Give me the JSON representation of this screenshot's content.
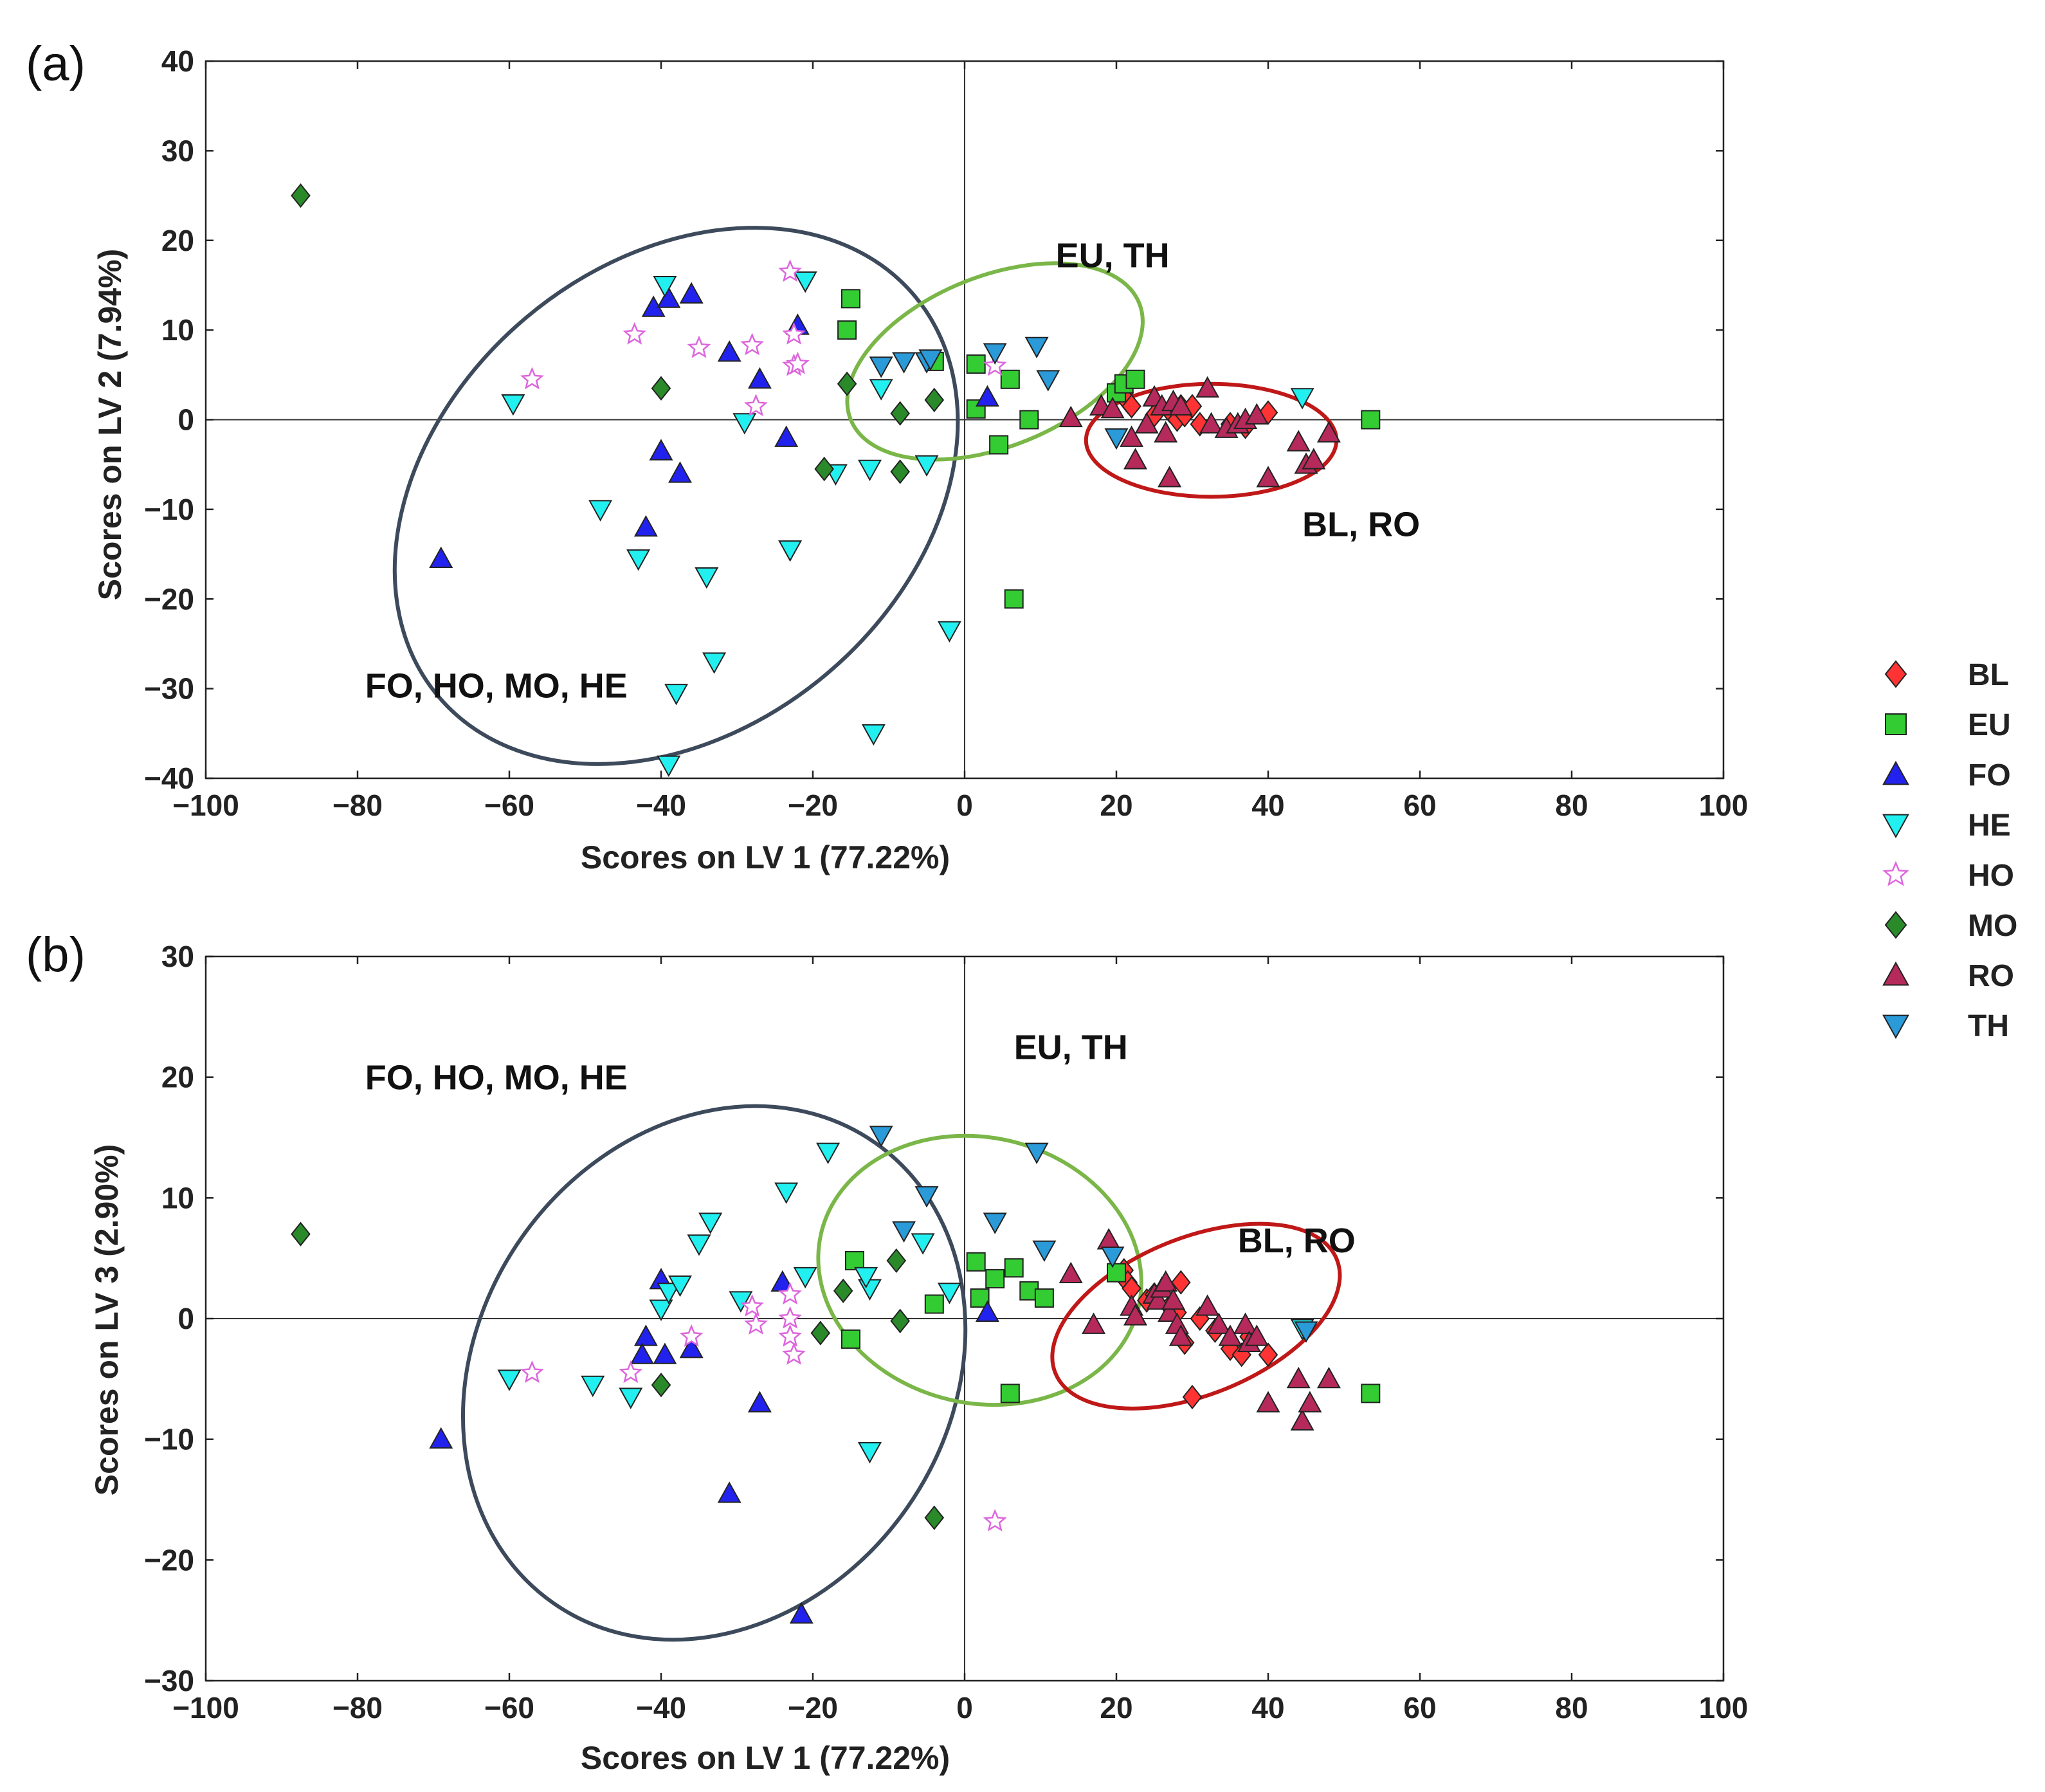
{
  "legend": {
    "items": [
      {
        "key": "BL",
        "label": "BL",
        "color": "#ff3333",
        "marker": "diamond"
      },
      {
        "key": "EU",
        "label": "EU",
        "color": "#33cc33",
        "marker": "square"
      },
      {
        "key": "FO",
        "label": "FO",
        "color": "#2222ee",
        "marker": "triangle-up"
      },
      {
        "key": "HE",
        "label": "HE",
        "color": "#22f0f0",
        "marker": "triangle-down"
      },
      {
        "key": "HO",
        "label": "HO",
        "color": "#dd66dd",
        "marker": "star"
      },
      {
        "key": "MO",
        "label": "MO",
        "color": "#2a8a2a",
        "marker": "diamond"
      },
      {
        "key": "RO",
        "label": "RO",
        "color": "#b52a5a",
        "marker": "triangle-up"
      },
      {
        "key": "TH",
        "label": "TH",
        "color": "#2a9ad8",
        "marker": "triangle-down"
      }
    ]
  },
  "chart_data": [
    {
      "panel": "(a)",
      "type": "scatter",
      "xlabel": "Scores on LV 1 (77.22%)",
      "ylabel": "Scores on LV 2 (7.94%)",
      "xlim": [
        -100,
        100
      ],
      "ylim": [
        -40,
        40
      ],
      "xticks": [
        -100,
        -80,
        -60,
        -40,
        -20,
        0,
        20,
        40,
        60,
        80,
        100
      ],
      "yticks": [
        -40,
        -30,
        -20,
        -10,
        0,
        10,
        20,
        30,
        40
      ],
      "xtick_labels": [
        "−100",
        "−80",
        "−60",
        "−40",
        "−20",
        "0",
        "20",
        "40",
        "60",
        "80",
        "100"
      ],
      "ytick_labels": [
        "−40",
        "−30",
        "−20",
        "−10",
        "0",
        "10",
        "20",
        "30",
        "40"
      ],
      "ellipses": [
        {
          "label": "FO, HO, MO, HE",
          "color": "#3d4a5c",
          "cx": -38,
          "cy": -8.5,
          "rx": 41,
          "ry": 26,
          "angle": -40
        },
        {
          "label": "EU, TH",
          "color": "#7ab648",
          "cx": 4,
          "cy": 6.5,
          "rx": 20.5,
          "ry": 9.5,
          "angle": -22
        },
        {
          "label": "BL, RO",
          "color": "#c01818",
          "cx": 32.5,
          "cy": -2.3,
          "rx": 16.5,
          "ry": 6.3,
          "angle": 0
        }
      ],
      "annotations": [
        {
          "text": "EU, TH",
          "x": 12,
          "y": 17
        },
        {
          "text": "BL, RO",
          "x": 44.5,
          "y": -13
        },
        {
          "text": "FO, HO, MO, HE",
          "x": -79,
          "y": -31
        }
      ],
      "series": [
        {
          "name": "BL",
          "points": [
            [
              21,
              3
            ],
            [
              21.5,
              2
            ],
            [
              22,
              1.5
            ],
            [
              25,
              0.5
            ],
            [
              27,
              1
            ],
            [
              28,
              0
            ],
            [
              28.5,
              1.5
            ],
            [
              29,
              0.5
            ],
            [
              30,
              1.5
            ],
            [
              31,
              -0.5
            ],
            [
              35,
              -0.5
            ],
            [
              37,
              -0.8
            ],
            [
              40,
              0.8
            ]
          ]
        },
        {
          "name": "EU",
          "points": [
            [
              -15,
              13.5
            ],
            [
              -15.5,
              10
            ],
            [
              -4,
              6.5
            ],
            [
              1.5,
              6.2
            ],
            [
              1.5,
              1.2
            ],
            [
              4.5,
              -2.8
            ],
            [
              6,
              4.5
            ],
            [
              8.5,
              0
            ],
            [
              6.5,
              -20
            ],
            [
              20,
              3
            ],
            [
              21,
              4
            ],
            [
              22.5,
              4.5
            ],
            [
              53.5,
              0
            ]
          ]
        },
        {
          "name": "FO",
          "points": [
            [
              -41,
              12.5
            ],
            [
              -39,
              13.5
            ],
            [
              -36,
              14
            ],
            [
              -31,
              7.5
            ],
            [
              -27,
              4.5
            ],
            [
              -23.5,
              -2
            ],
            [
              -22,
              10.5
            ],
            [
              -40,
              -3.5
            ],
            [
              -37.5,
              -6
            ],
            [
              -42,
              -12
            ],
            [
              -69,
              -15.5
            ],
            [
              3,
              2.5
            ]
          ]
        },
        {
          "name": "HE",
          "points": [
            [
              -39.5,
              15
            ],
            [
              -21,
              15.5
            ],
            [
              -59.5,
              1.8
            ],
            [
              -48,
              -10
            ],
            [
              -43,
              -15.5
            ],
            [
              -34,
              -17.5
            ],
            [
              -38,
              -30.5
            ],
            [
              -39,
              -38.5
            ],
            [
              -33,
              -27
            ],
            [
              -29,
              -0.3
            ],
            [
              -23,
              -14.5
            ],
            [
              -17,
              -6
            ],
            [
              -12.5,
              -5.5
            ],
            [
              -12,
              -35
            ],
            [
              -11,
              3.5
            ],
            [
              -5,
              -5
            ],
            [
              -2,
              -23.5
            ],
            [
              44.5,
              2.5
            ]
          ]
        },
        {
          "name": "HO",
          "points": [
            [
              -57,
              4.5
            ],
            [
              -43.5,
              9.5
            ],
            [
              -35,
              8
            ],
            [
              -28,
              8.3
            ],
            [
              -27.5,
              1.5
            ],
            [
              -23,
              16.5
            ],
            [
              -22.5,
              6
            ],
            [
              -22,
              6.2
            ],
            [
              -22.5,
              9.5
            ],
            [
              4,
              6
            ]
          ]
        },
        {
          "name": "MO",
          "points": [
            [
              -87.5,
              25
            ],
            [
              -40,
              3.5
            ],
            [
              -18.5,
              -5.5
            ],
            [
              -15.5,
              4
            ],
            [
              -8.5,
              0.7
            ],
            [
              -8.5,
              -5.8
            ],
            [
              -4,
              2.2
            ]
          ]
        },
        {
          "name": "RO",
          "points": [
            [
              14,
              0.2
            ],
            [
              18,
              1.5
            ],
            [
              19.5,
              1.2
            ],
            [
              22,
              -2
            ],
            [
              22.5,
              -4.5
            ],
            [
              24,
              -0.5
            ],
            [
              25,
              2.5
            ],
            [
              26,
              1.5
            ],
            [
              26.5,
              -1.5
            ],
            [
              27,
              -6.5
            ],
            [
              27.5,
              2
            ],
            [
              28.5,
              1.5
            ],
            [
              32,
              3.5
            ],
            [
              32.5,
              -0.5
            ],
            [
              34.5,
              -1
            ],
            [
              36,
              -0.5
            ],
            [
              37,
              0
            ],
            [
              38.5,
              0.5
            ],
            [
              40,
              -6.5
            ],
            [
              44,
              -2.5
            ],
            [
              45,
              -5
            ],
            [
              46,
              -4.5
            ],
            [
              48,
              -1.5
            ]
          ]
        },
        {
          "name": "TH",
          "points": [
            [
              -11,
              6
            ],
            [
              -8,
              6.5
            ],
            [
              -5,
              6.5
            ],
            [
              -4.5,
              6.8
            ],
            [
              4,
              7.5
            ],
            [
              9.5,
              8.2
            ],
            [
              11,
              4.5
            ],
            [
              20,
              -2
            ]
          ]
        }
      ]
    },
    {
      "panel": "(b)",
      "type": "scatter",
      "xlabel": "Scores on LV 1 (77.22%)",
      "ylabel": "Scores on LV 3 (2.90%)",
      "xlim": [
        -100,
        100
      ],
      "ylim": [
        -30,
        30
      ],
      "xticks": [
        -100,
        -80,
        -60,
        -40,
        -20,
        0,
        20,
        40,
        60,
        80,
        100
      ],
      "yticks": [
        -30,
        -20,
        -10,
        0,
        10,
        20,
        30
      ],
      "xtick_labels": [
        "−100",
        "−80",
        "−60",
        "−40",
        "−20",
        "0",
        "20",
        "40",
        "60",
        "80",
        "100"
      ],
      "ytick_labels": [
        "−30",
        "−20",
        "−10",
        "0",
        "10",
        "20",
        "30"
      ],
      "ellipses": [
        {
          "label": "FO, HO, MO, HE",
          "color": "#3d4a5c",
          "cx": -33,
          "cy": -4.5,
          "rx": 37,
          "ry": 19.5,
          "angle": -55
        },
        {
          "label": "EU, TH",
          "color": "#7ab648",
          "cx": 2,
          "cy": 4,
          "rx": 17.5,
          "ry": 13.5,
          "angle": -77
        },
        {
          "label": "BL, RO",
          "color": "#c01818",
          "cx": 30.5,
          "cy": 0.2,
          "rx": 20,
          "ry": 6.5,
          "angle": -22
        }
      ],
      "annotations": [
        {
          "text": "EU, TH",
          "x": 6.5,
          "y": 21.5
        },
        {
          "text": "BL, RO",
          "x": 36,
          "y": 5.5
        },
        {
          "text": "FO, HO, MO, HE",
          "x": -79,
          "y": 19
        }
      ],
      "series": [
        {
          "name": "BL",
          "points": [
            [
              21,
              4
            ],
            [
              21.5,
              3
            ],
            [
              22,
              2.5
            ],
            [
              24,
              1.5
            ],
            [
              25,
              2
            ],
            [
              27,
              1
            ],
            [
              28,
              0.5
            ],
            [
              28.5,
              3
            ],
            [
              29,
              -2
            ],
            [
              30,
              -6.5
            ],
            [
              31,
              0
            ],
            [
              33,
              -1
            ],
            [
              35,
              -2.5
            ],
            [
              36.5,
              -3
            ],
            [
              37.5,
              -1.5
            ],
            [
              40,
              -3
            ]
          ]
        },
        {
          "name": "EU",
          "points": [
            [
              -14.5,
              4.8
            ],
            [
              -15,
              -1.7
            ],
            [
              -4,
              1.2
            ],
            [
              1.5,
              4.7
            ],
            [
              2,
              1.7
            ],
            [
              4,
              3.3
            ],
            [
              6,
              -6.2
            ],
            [
              6.5,
              4.2
            ],
            [
              8.5,
              2.3
            ],
            [
              10.5,
              1.7
            ],
            [
              20,
              3.8
            ],
            [
              53.5,
              -6.2
            ]
          ]
        },
        {
          "name": "FO",
          "points": [
            [
              -40,
              3.2
            ],
            [
              -24,
              3
            ],
            [
              -42,
              -1.5
            ],
            [
              -42.5,
              -3
            ],
            [
              -39.5,
              -3
            ],
            [
              -36,
              -2.5
            ],
            [
              -27,
              -7
            ],
            [
              -31,
              -14.5
            ],
            [
              -21.5,
              -24.5
            ],
            [
              -69,
              -10
            ],
            [
              3,
              0.5
            ]
          ]
        },
        {
          "name": "HE",
          "points": [
            [
              -60,
              -5
            ],
            [
              -49,
              -5.5
            ],
            [
              -44,
              -6.5
            ],
            [
              -40,
              0.8
            ],
            [
              -39,
              2.2
            ],
            [
              -37.5,
              2.8
            ],
            [
              -35,
              6.2
            ],
            [
              -33.5,
              8
            ],
            [
              -29.5,
              1.5
            ],
            [
              -23.5,
              10.5
            ],
            [
              -21,
              3.5
            ],
            [
              -18,
              13.8
            ],
            [
              -12.5,
              2.5
            ],
            [
              -13,
              3.5
            ],
            [
              -12.5,
              -11
            ],
            [
              -5.5,
              6.3
            ],
            [
              -2,
              2.2
            ],
            [
              44.5,
              -0.8
            ]
          ]
        },
        {
          "name": "HO",
          "points": [
            [
              -57,
              -4.5
            ],
            [
              -44,
              -4.5
            ],
            [
              -36,
              -1.5
            ],
            [
              -28,
              1
            ],
            [
              -27.5,
              -0.5
            ],
            [
              -23,
              2
            ],
            [
              -23,
              0
            ],
            [
              -23,
              -1.5
            ],
            [
              -22.5,
              -3
            ],
            [
              4,
              -16.8
            ]
          ]
        },
        {
          "name": "MO",
          "points": [
            [
              -87.5,
              7
            ],
            [
              -40,
              -5.5
            ],
            [
              -19,
              -1.2
            ],
            [
              -16,
              2.3
            ],
            [
              -9,
              4.8
            ],
            [
              -8.5,
              -0.2
            ],
            [
              -4,
              -16.5
            ]
          ]
        },
        {
          "name": "RO",
          "points": [
            [
              14,
              3.7
            ],
            [
              17,
              -0.5
            ],
            [
              19,
              6.5
            ],
            [
              22,
              1
            ],
            [
              22.5,
              0.2
            ],
            [
              25,
              2
            ],
            [
              25.5,
              1.5
            ],
            [
              26,
              2.5
            ],
            [
              26.5,
              3
            ],
            [
              27,
              0.5
            ],
            [
              27.5,
              1.5
            ],
            [
              28,
              -0.5
            ],
            [
              28.5,
              -1.5
            ],
            [
              32,
              1
            ],
            [
              33.5,
              -0.5
            ],
            [
              35,
              -1.5
            ],
            [
              37,
              -0.5
            ],
            [
              37.5,
              -2
            ],
            [
              38.5,
              -1.5
            ],
            [
              40,
              -7
            ],
            [
              44,
              -5
            ],
            [
              44.5,
              -8.5
            ],
            [
              45.5,
              -7
            ],
            [
              48,
              -5
            ]
          ]
        },
        {
          "name": "TH",
          "points": [
            [
              -11,
              15.2
            ],
            [
              -8,
              7.3
            ],
            [
              -5,
              10.2
            ],
            [
              4,
              8
            ],
            [
              9.5,
              13.8
            ],
            [
              10.5,
              5.7
            ],
            [
              19.5,
              5.2
            ],
            [
              45,
              -1
            ]
          ]
        }
      ]
    }
  ]
}
